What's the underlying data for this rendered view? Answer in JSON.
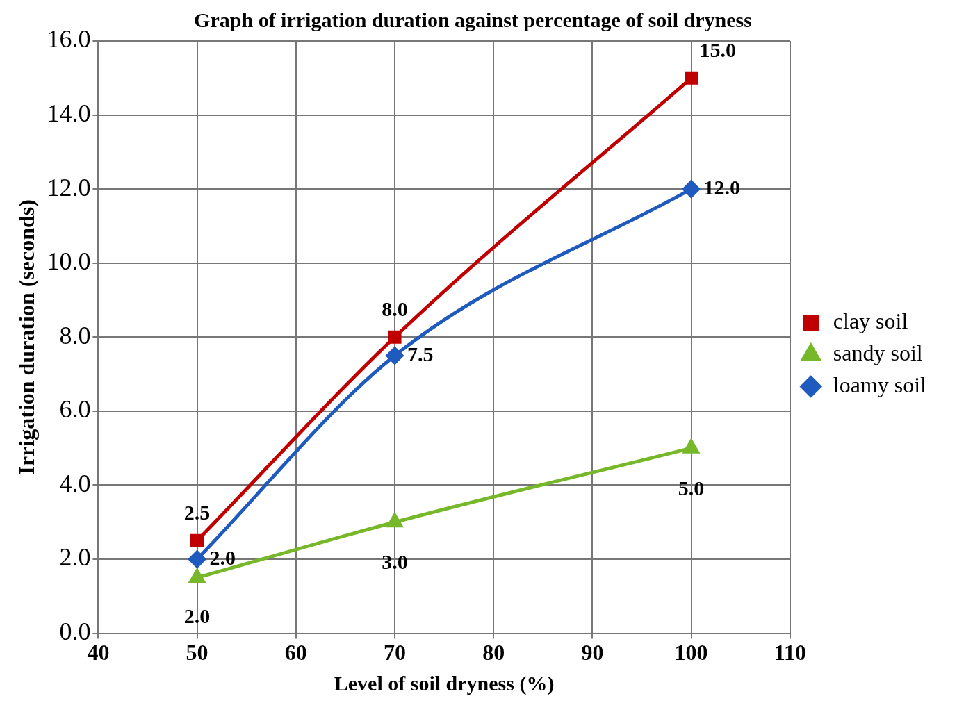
{
  "chart_data": {
    "type": "line",
    "title": "Graph of irrigation duration against percentage of soil dryness",
    "xlabel": "Level of soil dryness (%)",
    "ylabel": "Irrigation duration (seconds)",
    "x": [
      50,
      70,
      100
    ],
    "series": [
      {
        "name": "clay soil",
        "color": "#c00000",
        "marker": "square",
        "values": [
          2.5,
          8.0,
          15.0
        ],
        "value_labels": [
          "2.5",
          "8.0",
          "15.0"
        ]
      },
      {
        "name": "sandy soil",
        "color": "#77b82a",
        "marker": "triangle",
        "values": [
          1.5,
          3.0,
          5.0
        ],
        "value_labels": [
          null,
          "3.0",
          "5.0"
        ]
      },
      {
        "name": "loamy soil",
        "color": "#1f5bbf",
        "marker": "diamond",
        "values": [
          2.0,
          7.5,
          12.0
        ],
        "value_labels": [
          "2.0",
          "7.5",
          "12.0"
        ]
      }
    ],
    "xlim": [
      40,
      110
    ],
    "xticks": [
      40,
      50,
      60,
      70,
      80,
      90,
      100,
      110
    ],
    "ylim": [
      0,
      16
    ],
    "yticks": [
      {
        "value": 0,
        "label": "0.0"
      },
      {
        "value": 2,
        "label": "2.0"
      },
      {
        "value": 4,
        "label": "4.0"
      },
      {
        "value": 6,
        "label": "6.0"
      },
      {
        "value": 8,
        "label": "8.0"
      },
      {
        "value": 10,
        "label": "10.0"
      },
      {
        "value": 12,
        "label": "12.0"
      },
      {
        "value": 14,
        "label": "14.0"
      },
      {
        "value": 16,
        "label": "16.0"
      }
    ],
    "annotations": [
      "2.0"
    ],
    "grid": true,
    "legend": "right"
  }
}
